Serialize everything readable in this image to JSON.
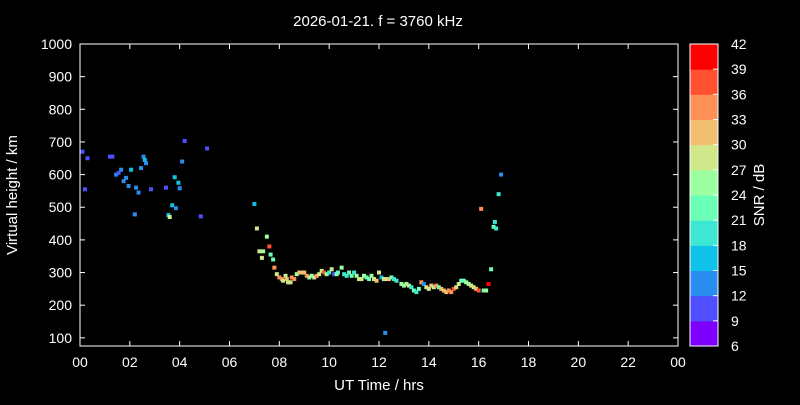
{
  "chart_data": {
    "type": "scatter",
    "title": "2026-01-21. f = 3760 kHz",
    "xlabel": "UT Time / hrs",
    "ylabel": "Virtual height / km",
    "xlim": [
      0,
      24
    ],
    "ylim": [
      75,
      1000
    ],
    "xticks": [
      "00",
      "02",
      "04",
      "06",
      "08",
      "10",
      "12",
      "14",
      "16",
      "18",
      "20",
      "22",
      "00"
    ],
    "yticks": [
      100,
      200,
      300,
      400,
      500,
      600,
      700,
      800,
      900,
      1000
    ],
    "grid": false,
    "colorbar": {
      "label": "SNR / dB",
      "range": [
        6,
        42
      ],
      "ticks": [
        6,
        9,
        12,
        15,
        18,
        21,
        24,
        27,
        30,
        33,
        36,
        39,
        42
      ],
      "colors": [
        "#7f00ff",
        "#4f4fff",
        "#2a8df0",
        "#0fc2e8",
        "#3ce8d2",
        "#6cffb8",
        "#9cffa0",
        "#d0e88a",
        "#f2c070",
        "#ff9058",
        "#ff5030",
        "#ff0000"
      ]
    },
    "points_fields": [
      "hour",
      "height_km",
      "snr_db"
    ],
    "points": [
      [
        0.1,
        670,
        9
      ],
      [
        0.2,
        555,
        9
      ],
      [
        0.3,
        650,
        9
      ],
      [
        1.2,
        655,
        9
      ],
      [
        1.3,
        655,
        9
      ],
      [
        1.45,
        600,
        12
      ],
      [
        1.55,
        605,
        9
      ],
      [
        1.65,
        615,
        12
      ],
      [
        1.75,
        580,
        12
      ],
      [
        1.85,
        590,
        12
      ],
      [
        1.95,
        565,
        12
      ],
      [
        2.05,
        615,
        15
      ],
      [
        2.2,
        478,
        12
      ],
      [
        2.25,
        560,
        12
      ],
      [
        2.35,
        545,
        12
      ],
      [
        2.45,
        620,
        12
      ],
      [
        2.55,
        655,
        12
      ],
      [
        2.6,
        645,
        15
      ],
      [
        2.65,
        635,
        12
      ],
      [
        2.85,
        555,
        9
      ],
      [
        3.45,
        560,
        9
      ],
      [
        3.55,
        476,
        15
      ],
      [
        3.6,
        470,
        27
      ],
      [
        3.7,
        506,
        15
      ],
      [
        3.8,
        592,
        15
      ],
      [
        3.85,
        497,
        12
      ],
      [
        3.95,
        575,
        15
      ],
      [
        4.0,
        558,
        12
      ],
      [
        4.1,
        640,
        12
      ],
      [
        4.2,
        703,
        9
      ],
      [
        4.85,
        472,
        9
      ],
      [
        5.1,
        680,
        9
      ],
      [
        7.0,
        510,
        15
      ],
      [
        7.1,
        435,
        27
      ],
      [
        7.2,
        365,
        27
      ],
      [
        7.3,
        345,
        27
      ],
      [
        7.35,
        365,
        24
      ],
      [
        7.5,
        410,
        24
      ],
      [
        7.6,
        380,
        36
      ],
      [
        7.65,
        355,
        21
      ],
      [
        7.75,
        340,
        21
      ],
      [
        7.8,
        315,
        33
      ],
      [
        7.9,
        295,
        27
      ],
      [
        8.0,
        285,
        33
      ],
      [
        8.1,
        280,
        33
      ],
      [
        8.15,
        275,
        27
      ],
      [
        8.25,
        290,
        27
      ],
      [
        8.3,
        280,
        30
      ],
      [
        8.35,
        270,
        27
      ],
      [
        8.45,
        270,
        27
      ],
      [
        8.5,
        285,
        33
      ],
      [
        8.6,
        280,
        33
      ],
      [
        8.7,
        295,
        24
      ],
      [
        8.8,
        300,
        30
      ],
      [
        8.9,
        300,
        30
      ],
      [
        9.0,
        300,
        30
      ],
      [
        9.1,
        290,
        33
      ],
      [
        9.2,
        285,
        24
      ],
      [
        9.3,
        290,
        24
      ],
      [
        9.4,
        285,
        27
      ],
      [
        9.5,
        290,
        33
      ],
      [
        9.6,
        295,
        27
      ],
      [
        9.7,
        305,
        27
      ],
      [
        9.8,
        300,
        36
      ],
      [
        9.9,
        295,
        24
      ],
      [
        10.0,
        300,
        18
      ],
      [
        10.1,
        310,
        27
      ],
      [
        10.2,
        295,
        9
      ],
      [
        10.3,
        295,
        24
      ],
      [
        10.35,
        300,
        21
      ],
      [
        10.5,
        315,
        24
      ],
      [
        10.6,
        295,
        18
      ],
      [
        10.7,
        290,
        18
      ],
      [
        10.8,
        300,
        21
      ],
      [
        10.9,
        290,
        21
      ],
      [
        11.0,
        300,
        18
      ],
      [
        11.1,
        290,
        24
      ],
      [
        11.2,
        280,
        27
      ],
      [
        11.3,
        280,
        27
      ],
      [
        11.4,
        290,
        24
      ],
      [
        11.5,
        285,
        21
      ],
      [
        11.6,
        280,
        21
      ],
      [
        11.7,
        290,
        24
      ],
      [
        11.8,
        280,
        27
      ],
      [
        11.9,
        275,
        30
      ],
      [
        12.0,
        300,
        27
      ],
      [
        12.1,
        285,
        15
      ],
      [
        12.2,
        280,
        27
      ],
      [
        12.25,
        115,
        12
      ],
      [
        12.3,
        280,
        27
      ],
      [
        12.4,
        280,
        30
      ],
      [
        12.5,
        285,
        21
      ],
      [
        12.6,
        280,
        18
      ],
      [
        12.7,
        275,
        18
      ],
      [
        12.9,
        265,
        24
      ],
      [
        13.0,
        260,
        24
      ],
      [
        13.1,
        265,
        24
      ],
      [
        13.2,
        260,
        27
      ],
      [
        13.3,
        255,
        18
      ],
      [
        13.4,
        245,
        21
      ],
      [
        13.5,
        240,
        18
      ],
      [
        13.6,
        250,
        21
      ],
      [
        13.7,
        270,
        33
      ],
      [
        13.8,
        265,
        12
      ],
      [
        13.9,
        255,
        27
      ],
      [
        14.0,
        250,
        27
      ],
      [
        14.1,
        260,
        30
      ],
      [
        14.2,
        255,
        27
      ],
      [
        14.3,
        260,
        33
      ],
      [
        14.4,
        255,
        21
      ],
      [
        14.5,
        250,
        30
      ],
      [
        14.6,
        245,
        30
      ],
      [
        14.7,
        240,
        30
      ],
      [
        14.8,
        245,
        33
      ],
      [
        14.9,
        240,
        33
      ],
      [
        15.0,
        250,
        36
      ],
      [
        15.1,
        255,
        27
      ],
      [
        15.2,
        265,
        27
      ],
      [
        15.3,
        275,
        21
      ],
      [
        15.4,
        275,
        21
      ],
      [
        15.5,
        270,
        24
      ],
      [
        15.6,
        265,
        24
      ],
      [
        15.7,
        260,
        27
      ],
      [
        15.8,
        255,
        27
      ],
      [
        15.9,
        250,
        30
      ],
      [
        16.0,
        245,
        36
      ],
      [
        16.1,
        495,
        33
      ],
      [
        16.2,
        245,
        21
      ],
      [
        16.3,
        245,
        24
      ],
      [
        16.4,
        265,
        39
      ],
      [
        16.5,
        310,
        21
      ],
      [
        16.6,
        440,
        21
      ],
      [
        16.65,
        455,
        18
      ],
      [
        16.7,
        435,
        18
      ],
      [
        16.8,
        540,
        18
      ],
      [
        16.9,
        600,
        12
      ]
    ]
  }
}
